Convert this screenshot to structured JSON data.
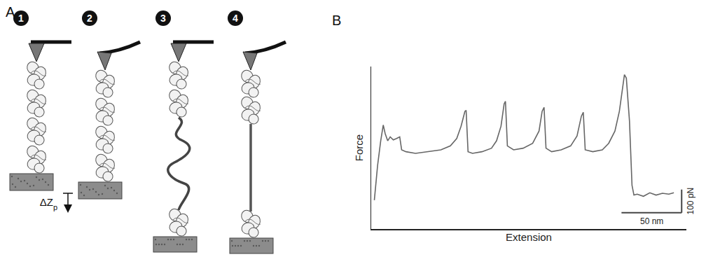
{
  "panel_a": {
    "letter": "A",
    "steps": [
      "1",
      "2",
      "3",
      "4"
    ],
    "label": {
      "main": "ΔZ",
      "sub": "p"
    }
  },
  "chart_data": {
    "letter": "B",
    "type": "line",
    "x_label": "Extension",
    "y_label": "Force",
    "x": [
      2.6,
      5.3,
      7.9,
      10.0,
      11.6,
      13.7,
      15.8,
      18.4,
      21.1,
      23.7,
      25.3,
      28.9,
      36.8,
      47.4,
      57.9,
      65.8,
      71.1,
      74.7,
      77.9,
      78.9,
      80.5,
      84.2,
      92.1,
      100.0,
      104.2,
      107.9,
      110.5,
      111.6,
      113.2,
      118.4,
      126.3,
      134.2,
      139.5,
      142.1,
      143.7,
      145.3,
      150.0,
      157.9,
      165.8,
      171.1,
      174.7,
      176.3,
      177.9,
      184.2,
      192.1,
      197.4,
      202.6,
      206.3,
      208.9,
      210.5,
      212.1,
      214.7,
      216.8,
      218.4,
      221.1,
      226.3,
      231.6,
      236.8,
      242.1,
      247.4,
      251.6
    ],
    "values": [
      4,
      153,
      260,
      328,
      291,
      260,
      277,
      264,
      270,
      277,
      221,
      213,
      206,
      213,
      221,
      238,
      270,
      323,
      387,
      391,
      213,
      206,
      213,
      228,
      260,
      323,
      419,
      430,
      238,
      221,
      228,
      249,
      302,
      387,
      404,
      228,
      213,
      221,
      238,
      281,
      366,
      383,
      221,
      213,
      221,
      249,
      302,
      387,
      494,
      545,
      530,
      345,
      68,
      26,
      30,
      21,
      36,
      26,
      34,
      30,
      36
    ],
    "color": "#666666",
    "line_style": "solid",
    "xlim": [
      0,
      262
    ],
    "ylim": [
      -120,
      580
    ],
    "xticks": [],
    "yticks": [],
    "tick_labels": false,
    "grid": false,
    "scale_bars": [
      {
        "axis": "y",
        "value": 100,
        "label": "100 pN"
      },
      {
        "axis": "x",
        "value": 50,
        "label": "50 nm"
      }
    ]
  }
}
